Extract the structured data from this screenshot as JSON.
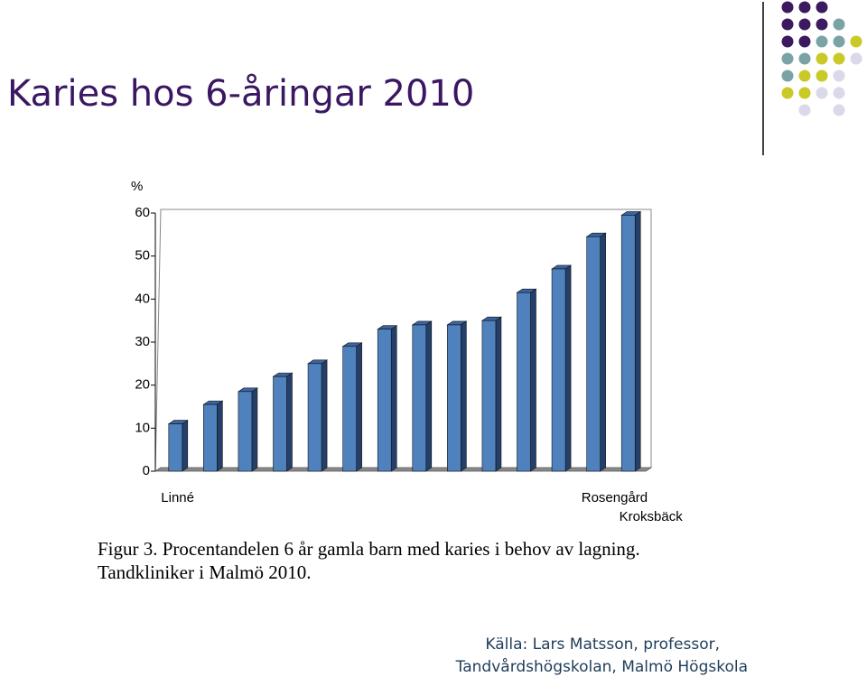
{
  "title": "Karies hos 6-åringar 2010",
  "chart_data": {
    "type": "bar",
    "y_label": "%",
    "categories": [
      "Linné",
      null,
      null,
      null,
      null,
      null,
      null,
      null,
      null,
      null,
      null,
      null,
      "Rosengård",
      "Kroksbäck"
    ],
    "values": [
      11,
      15.5,
      18.5,
      22,
      25,
      29,
      33,
      34,
      34,
      35,
      41.5,
      47,
      54.5,
      59.5
    ],
    "color": "#4f81bd",
    "ylim": [
      0,
      60
    ],
    "yticks": [
      0,
      10,
      20,
      30,
      40,
      50,
      60
    ],
    "grid": false
  },
  "caption": [
    "Figur 3. Procentandelen 6 år gamla barn med karies i behov av lagning.",
    "Tandkliniker i Malmö 2010."
  ],
  "source": [
    "Källa: Lars Matsson, professor,",
    "Tandvårdshögskolan, Malmö Högskola"
  ]
}
